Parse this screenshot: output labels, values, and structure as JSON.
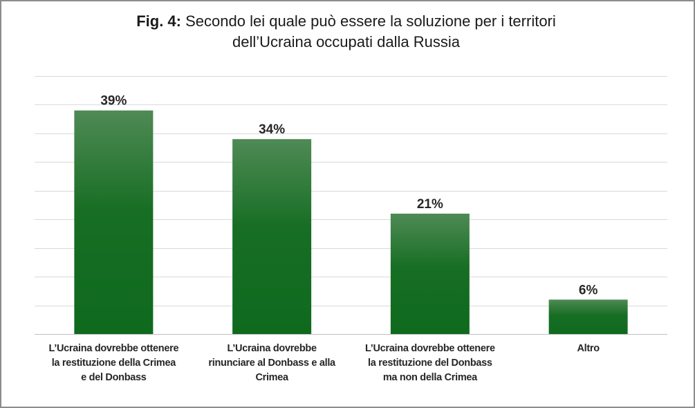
{
  "title": {
    "prefix": "Fig. 4:",
    "line1": "Secondo lei quale può essere la soluzione per i territori",
    "line2": "dell’Ucraina occupati dalla Russia"
  },
  "chart_data": {
    "type": "bar",
    "categories": [
      "L’Ucraina dovrebbe ottenere la restituzione della Crimea e del Donbass",
      "L’Ucraina dovrebbe rinunciare al Donbass e alla Crimea",
      "L’Ucraina dovrebbe ottenere la restituzione del Donbass ma non della Crimea",
      "Altro"
    ],
    "category_lines": [
      [
        "L’Ucraina dovrebbe ottenere",
        "la restituzione della Crimea",
        "e del Donbass"
      ],
      [
        "L’Ucraina dovrebbe",
        "rinunciare al Donbass e alla",
        "Crimea"
      ],
      [
        "L’Ucraina dovrebbe ottenere",
        "la restituzione del Donbass",
        "ma non della Crimea"
      ],
      [
        "Altro"
      ]
    ],
    "values": [
      39,
      34,
      21,
      6
    ],
    "value_labels": [
      "39%",
      "34%",
      "21%",
      "6%"
    ],
    "unit": "%",
    "ylim": [
      0,
      45
    ],
    "grid": true,
    "legend": "none",
    "colors": {
      "bar_top": "#4f8a55",
      "bar_mid": "#176e24",
      "bar_bottom": "#0f6a1e",
      "grid": "#d9d9d9",
      "label": "#262626"
    }
  }
}
